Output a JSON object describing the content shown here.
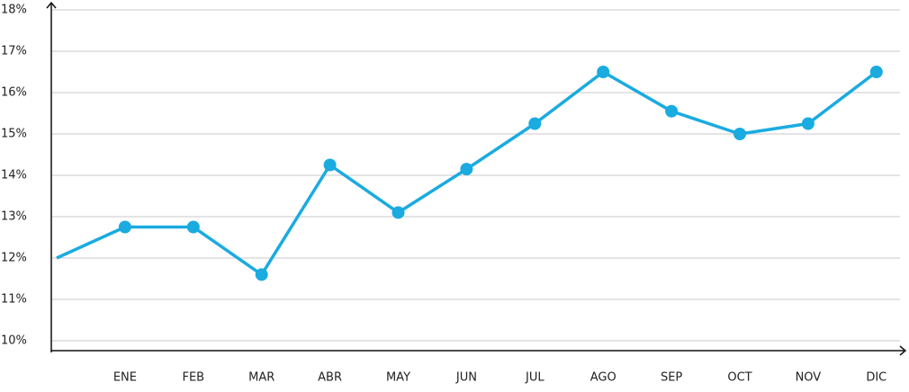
{
  "chart_data": {
    "type": "line",
    "categories": [
      null,
      "ENE",
      "FEB",
      "MAR",
      "ABR",
      "MAY",
      "JUN",
      "JUL",
      "AGO",
      "SEP",
      "OCT",
      "NOV",
      "DIC"
    ],
    "series": [
      {
        "name": null,
        "color": "#1aabe0",
        "values": [
          12.0,
          12.75,
          12.75,
          11.6,
          14.25,
          13.1,
          14.15,
          15.25,
          16.5,
          15.55,
          15.0,
          15.25,
          16.5
        ]
      }
    ],
    "ylim": [
      10,
      18
    ],
    "yticks": [
      {
        "value": 10,
        "label": "10%"
      },
      {
        "value": 11,
        "label": "11%"
      },
      {
        "value": 12,
        "label": "12%"
      },
      {
        "value": 13,
        "label": "13%"
      },
      {
        "value": 14,
        "label": "14%"
      },
      {
        "value": 15,
        "label": "15%"
      },
      {
        "value": 16,
        "label": "16%"
      },
      {
        "value": 17,
        "label": "17%"
      },
      {
        "value": 18,
        "label": "18%"
      }
    ],
    "grid": true
  }
}
